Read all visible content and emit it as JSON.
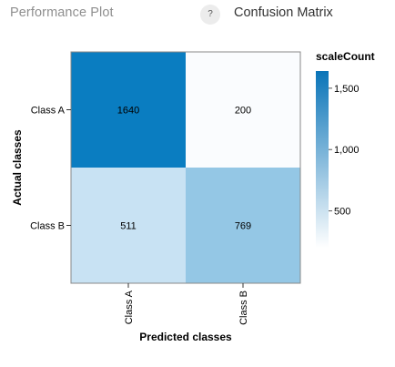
{
  "header": {
    "tab_label": "Performance Plot",
    "help_label": "?",
    "title": "Confusion Matrix"
  },
  "chart_data": {
    "type": "heatmap",
    "title": "Confusion Matrix",
    "xlabel": "Predicted classes",
    "ylabel": "Actual classes",
    "x_categories": [
      "Class A",
      "Class B"
    ],
    "y_categories": [
      "Class A",
      "Class B"
    ],
    "values": [
      [
        1640,
        200
      ],
      [
        511,
        769
      ]
    ],
    "colorscale": {
      "title": "scaleCount",
      "domain": [
        200,
        1640
      ],
      "ticks": [
        500,
        1000,
        1500
      ],
      "tick_labels": [
        "500",
        "1,000",
        "1,500"
      ],
      "color_low": "#ffffff",
      "color_high": "#0a74b8"
    },
    "cell_colors": [
      [
        "#0a7dc1",
        "#fafcfe"
      ],
      [
        "#c8e2f3",
        "#94c7e5"
      ]
    ],
    "legend_position": "right"
  }
}
